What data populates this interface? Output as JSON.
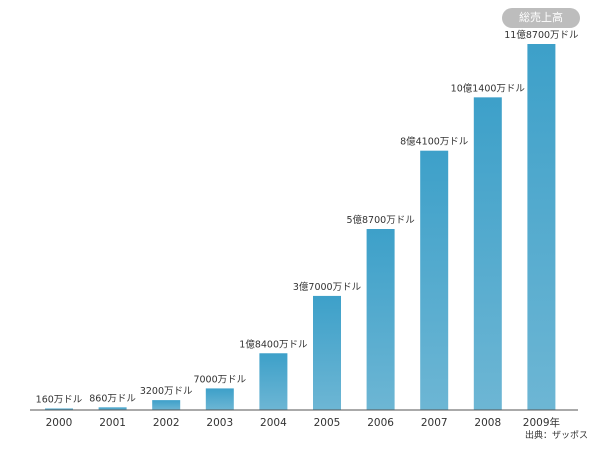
{
  "chart_data": {
    "type": "bar",
    "title_badge": "総売上高",
    "categories": [
      "2000",
      "2001",
      "2002",
      "2003",
      "2004",
      "2005",
      "2006",
      "2007",
      "2008",
      "2009年"
    ],
    "values": [
      1600000,
      8600000,
      32000000,
      70000000,
      184000000,
      370000000,
      587000000,
      841000000,
      1014000000,
      1187000000
    ],
    "data_labels": [
      "160万ドル",
      "860万ドル",
      "3200万ドル",
      "7000万ドル",
      "1億8400万ドル",
      "3億7000万ドル",
      "5億8700万ドル",
      "8億4100万ドル",
      "10億1400万ドル",
      "11億8700万ドル"
    ],
    "unit": "ドル",
    "ylim": [
      0,
      1187000000
    ],
    "grid": false,
    "colors": {
      "bar_top": "#3da0c9",
      "bar_bottom": "#6db6d4",
      "axis": "#555555"
    }
  },
  "source_note": "出典：ザッポス"
}
